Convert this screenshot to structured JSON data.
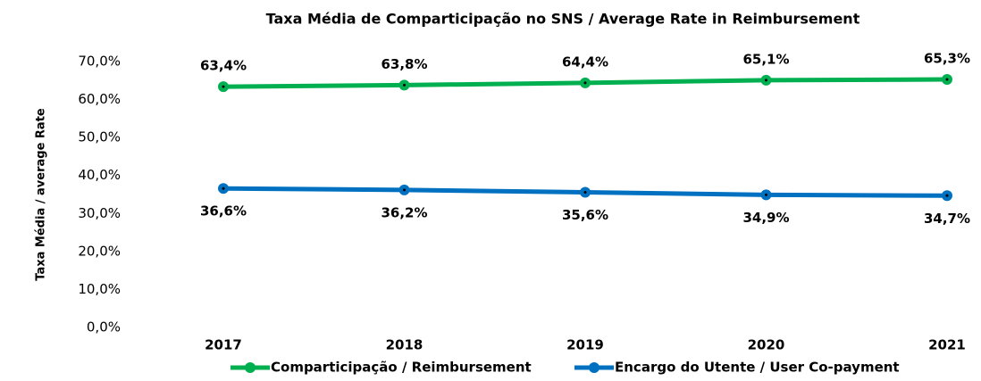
{
  "chart_data": {
    "type": "line",
    "title": "Taxa Média de Comparticipação  no SNS  / Average Rate in Reimbursement",
    "y_label": "Taxa Média / average Rate",
    "categories": [
      "2017",
      "2018",
      "2019",
      "2020",
      "2021"
    ],
    "series": [
      {
        "name": "Comparticipação / Reimbursement",
        "color": "#00b050",
        "values": [
          63.4,
          63.8,
          64.4,
          65.1,
          65.3
        ],
        "value_labels": [
          "63,4%",
          "63,8%",
          "64,4%",
          "65,1%",
          "65,3%"
        ]
      },
      {
        "name": "Encargo do Utente / User Co-payment",
        "color": "#0070c0",
        "values": [
          36.6,
          36.2,
          35.6,
          34.9,
          34.7
        ],
        "value_labels": [
          "36,6%",
          "36,2%",
          "35,6%",
          "34,9%",
          "34,7%"
        ]
      }
    ],
    "ylim": [
      0,
      70
    ],
    "yticks": [
      {
        "value": 0,
        "label": "0,0%"
      },
      {
        "value": 10,
        "label": "10,0%"
      },
      {
        "value": 20,
        "label": "20,0%"
      },
      {
        "value": 30,
        "label": "30,0%"
      },
      {
        "value": 40,
        "label": "40,0%"
      },
      {
        "value": 50,
        "label": "50,0%"
      },
      {
        "value": 60,
        "label": "60,0%"
      },
      {
        "value": 70,
        "label": "70,0%"
      }
    ],
    "grid": false
  }
}
